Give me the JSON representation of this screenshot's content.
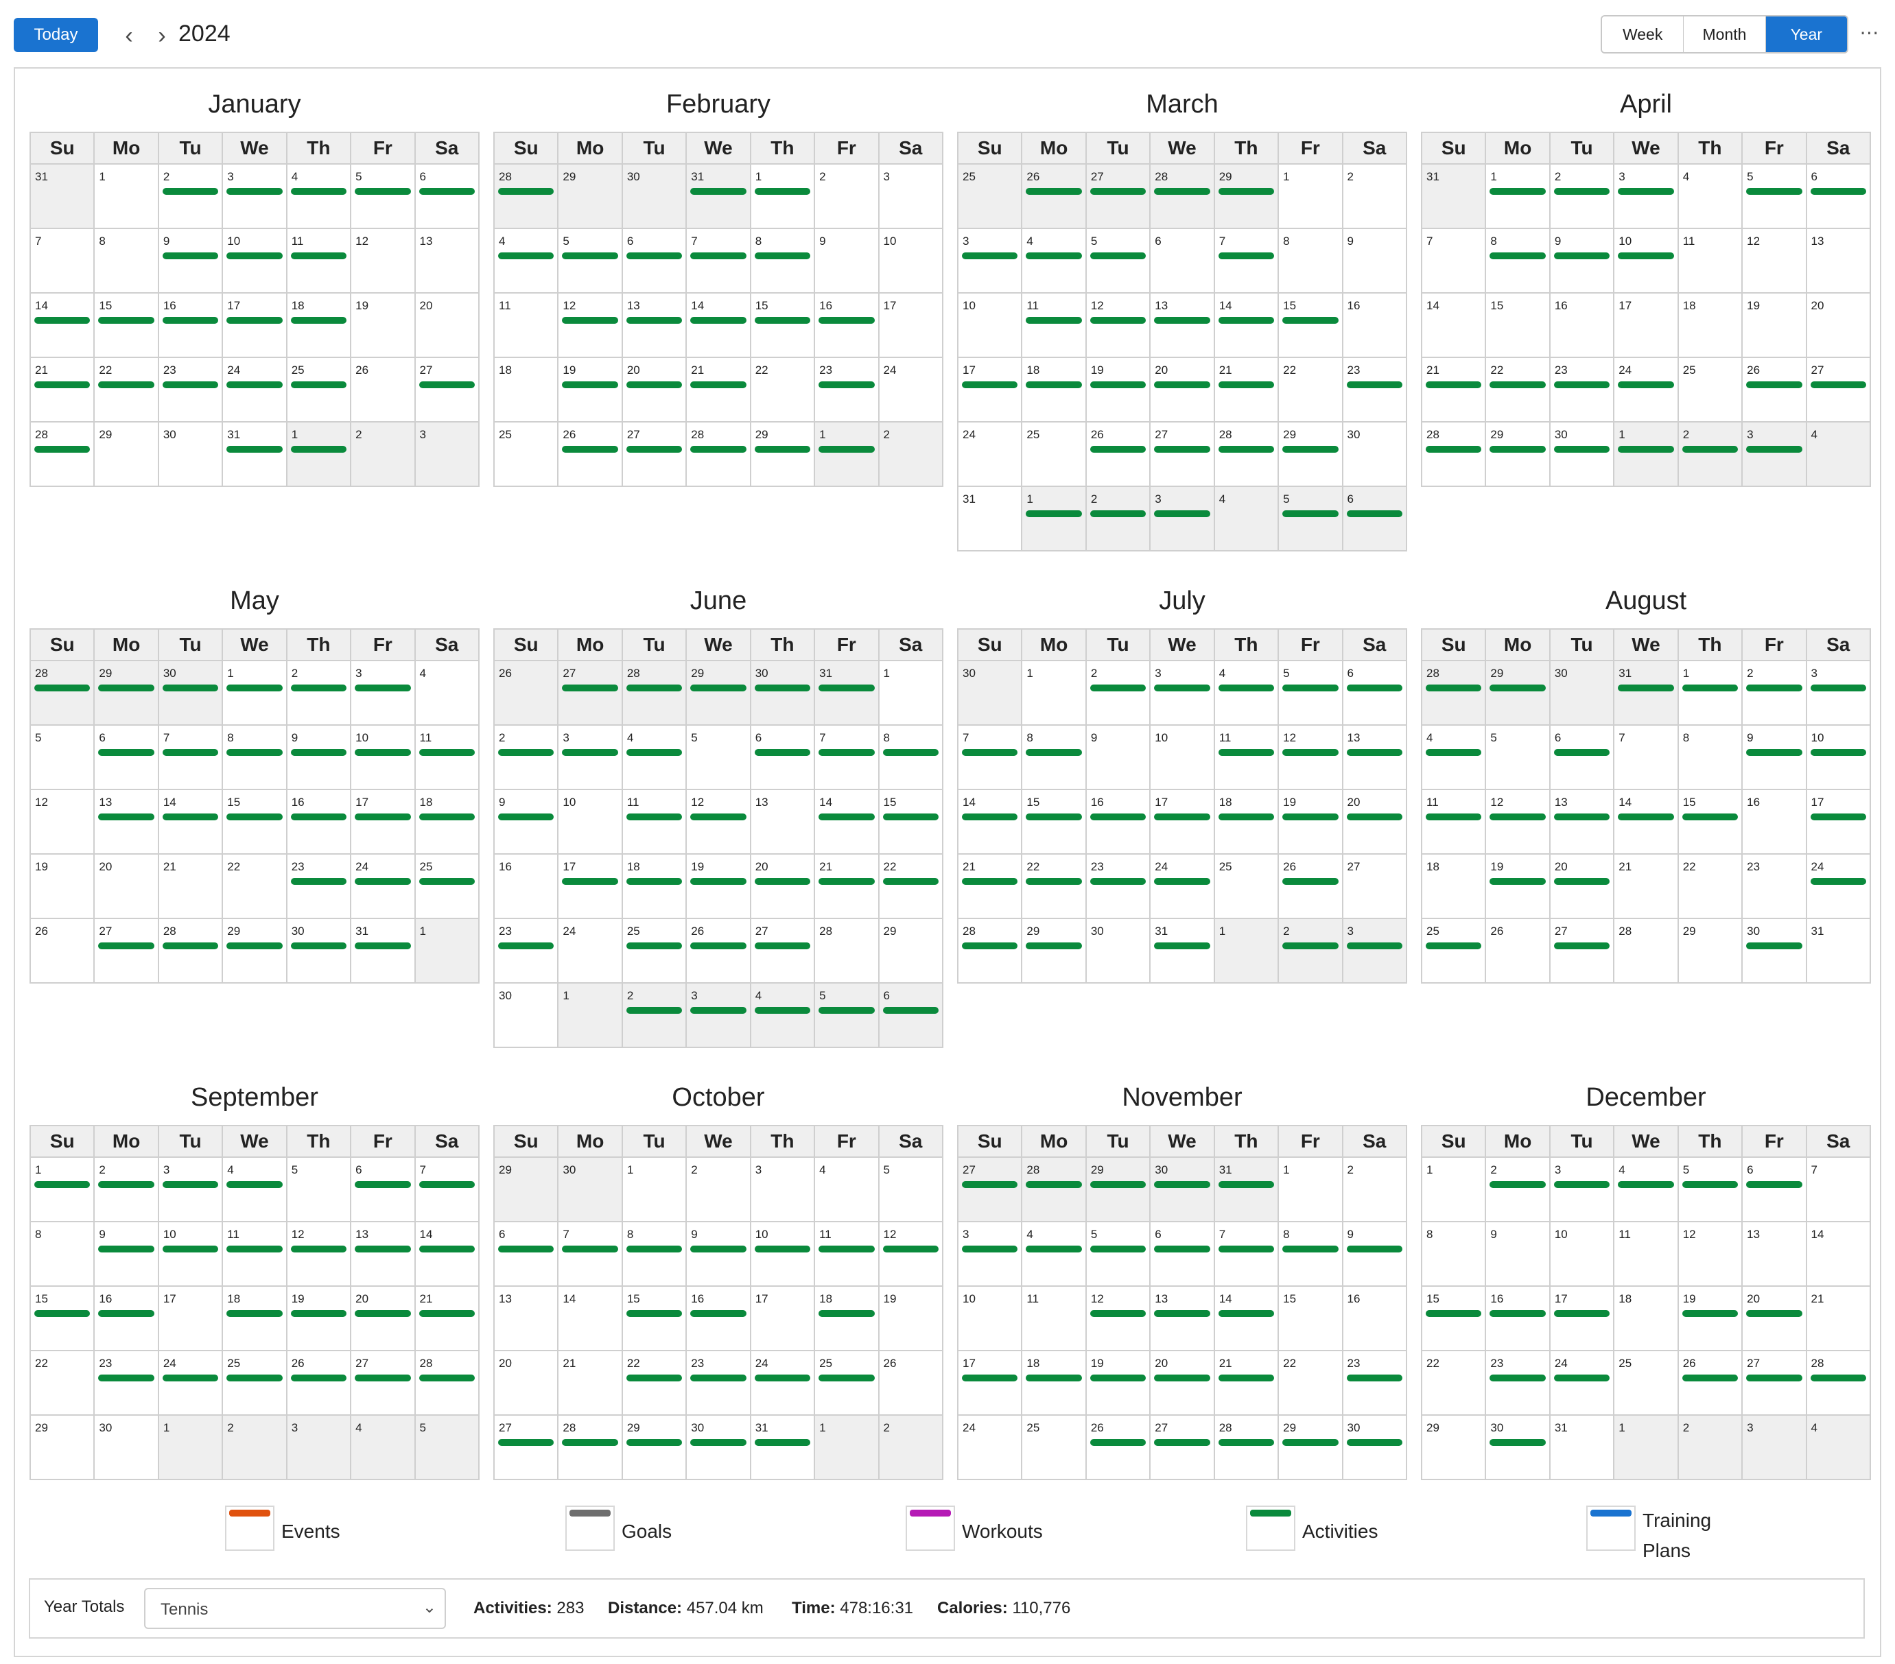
{
  "toolbar": {
    "today_label": "Today",
    "prev_icon": "chevron-left-icon",
    "next_icon": "chevron-right-icon",
    "year": "2024",
    "views": [
      {
        "label": "Week",
        "active": false
      },
      {
        "label": "Month",
        "active": false
      },
      {
        "label": "Year",
        "active": true
      }
    ],
    "more_icon": "more-horizontal-icon"
  },
  "weekday_headers": [
    "Su",
    "Mo",
    "Tu",
    "We",
    "Th",
    "Fr",
    "Sa"
  ],
  "colors": {
    "activity": "#0a8a3c",
    "primary": "#1a73d0",
    "events": "#e0520f",
    "goals": "#6e6e6e",
    "workouts": "#b51ab5",
    "activities": "#0a8a3c",
    "training_plans": "#1a73d0"
  },
  "calendar": {
    "months": [
      {
        "name": "January",
        "first_date": "2023-12-31",
        "weeks": 5,
        "activity_days": [
          "01-02",
          "01-03",
          "01-04",
          "01-05",
          "01-06",
          "01-09",
          "01-10",
          "01-11",
          "01-14",
          "01-15",
          "01-16",
          "01-17",
          "01-18",
          "01-21",
          "01-22",
          "01-23",
          "01-24",
          "01-25",
          "01-27",
          "01-28",
          "01-31",
          "02-01"
        ]
      },
      {
        "name": "February",
        "first_date": "2024-01-28",
        "weeks": 5,
        "activity_days": [
          "01-28",
          "01-31",
          "02-01",
          "02-04",
          "02-05",
          "02-06",
          "02-07",
          "02-08",
          "02-12",
          "02-13",
          "02-14",
          "02-15",
          "02-16",
          "02-19",
          "02-20",
          "02-21",
          "02-23",
          "02-26",
          "02-27",
          "02-28",
          "02-29",
          "03-01"
        ]
      },
      {
        "name": "March",
        "first_date": "2024-02-25",
        "weeks": 6,
        "activity_days": [
          "02-26",
          "02-27",
          "02-28",
          "02-29",
          "03-03",
          "03-04",
          "03-05",
          "03-07",
          "03-11",
          "03-12",
          "03-13",
          "03-14",
          "03-15",
          "03-17",
          "03-18",
          "03-19",
          "03-20",
          "03-21",
          "03-23",
          "03-26",
          "03-27",
          "03-28",
          "03-29",
          "04-01",
          "04-02",
          "04-03",
          "04-05",
          "04-06"
        ]
      },
      {
        "name": "April",
        "first_date": "2024-03-31",
        "weeks": 5,
        "activity_days": [
          "04-01",
          "04-02",
          "04-03",
          "04-05",
          "04-06",
          "04-08",
          "04-09",
          "04-10",
          "04-21",
          "04-22",
          "04-23",
          "04-24",
          "04-26",
          "04-27",
          "04-28",
          "04-29",
          "04-30",
          "05-01",
          "05-02",
          "05-03"
        ]
      },
      {
        "name": "May",
        "first_date": "2024-04-28",
        "weeks": 5,
        "activity_days": [
          "04-28",
          "04-29",
          "04-30",
          "05-01",
          "05-02",
          "05-03",
          "05-06",
          "05-07",
          "05-08",
          "05-09",
          "05-10",
          "05-11",
          "05-13",
          "05-14",
          "05-15",
          "05-16",
          "05-17",
          "05-18",
          "05-23",
          "05-24",
          "05-25",
          "05-27",
          "05-28",
          "05-29",
          "05-30",
          "05-31"
        ]
      },
      {
        "name": "June",
        "first_date": "2024-05-26",
        "weeks": 6,
        "activity_days": [
          "05-27",
          "05-28",
          "05-29",
          "05-30",
          "05-31",
          "06-02",
          "06-03",
          "06-04",
          "06-06",
          "06-07",
          "06-08",
          "06-09",
          "06-11",
          "06-12",
          "06-14",
          "06-15",
          "06-17",
          "06-18",
          "06-19",
          "06-20",
          "06-21",
          "06-22",
          "06-23",
          "06-25",
          "06-26",
          "06-27",
          "07-02",
          "07-03",
          "07-04",
          "07-05",
          "07-06"
        ]
      },
      {
        "name": "July",
        "first_date": "2024-06-30",
        "weeks": 5,
        "activity_days": [
          "07-02",
          "07-03",
          "07-04",
          "07-05",
          "07-06",
          "07-07",
          "07-08",
          "07-11",
          "07-12",
          "07-13",
          "07-14",
          "07-15",
          "07-16",
          "07-17",
          "07-18",
          "07-19",
          "07-20",
          "07-21",
          "07-22",
          "07-23",
          "07-24",
          "07-26",
          "07-28",
          "07-29",
          "07-31",
          "08-02",
          "08-03"
        ]
      },
      {
        "name": "August",
        "first_date": "2024-07-28",
        "weeks": 5,
        "activity_days": [
          "07-28",
          "07-29",
          "07-31",
          "08-01",
          "08-02",
          "08-03",
          "08-04",
          "08-06",
          "08-09",
          "08-10",
          "08-11",
          "08-12",
          "08-13",
          "08-14",
          "08-15",
          "08-17",
          "08-19",
          "08-20",
          "08-24",
          "08-25",
          "08-27",
          "08-30"
        ]
      },
      {
        "name": "September",
        "first_date": "2024-09-01",
        "weeks": 5,
        "activity_days": [
          "09-01",
          "09-02",
          "09-03",
          "09-04",
          "09-06",
          "09-07",
          "09-09",
          "09-10",
          "09-11",
          "09-12",
          "09-13",
          "09-14",
          "09-15",
          "09-16",
          "09-18",
          "09-19",
          "09-20",
          "09-21",
          "09-23",
          "09-24",
          "09-25",
          "09-26",
          "09-27",
          "09-28"
        ]
      },
      {
        "name": "October",
        "first_date": "2024-09-29",
        "weeks": 5,
        "activity_days": [
          "10-06",
          "10-07",
          "10-08",
          "10-09",
          "10-10",
          "10-11",
          "10-12",
          "10-15",
          "10-16",
          "10-18",
          "10-22",
          "10-23",
          "10-24",
          "10-25",
          "10-27",
          "10-28",
          "10-29",
          "10-30",
          "10-31"
        ]
      },
      {
        "name": "November",
        "first_date": "2024-10-27",
        "weeks": 5,
        "activity_days": [
          "10-27",
          "10-28",
          "10-29",
          "10-30",
          "10-31",
          "11-03",
          "11-04",
          "11-05",
          "11-06",
          "11-07",
          "11-08",
          "11-09",
          "11-12",
          "11-13",
          "11-14",
          "11-17",
          "11-18",
          "11-19",
          "11-20",
          "11-21",
          "11-23",
          "11-26",
          "11-27",
          "11-28",
          "11-29",
          "11-30"
        ]
      },
      {
        "name": "December",
        "first_date": "2024-12-01",
        "weeks": 5,
        "activity_days": [
          "12-02",
          "12-03",
          "12-04",
          "12-05",
          "12-06",
          "12-15",
          "12-16",
          "12-17",
          "12-19",
          "12-20",
          "12-23",
          "12-24",
          "12-26",
          "12-27",
          "12-28",
          "12-30"
        ]
      }
    ]
  },
  "legend": [
    {
      "label": "Events",
      "icon": "events-legend-icon",
      "color": "#e0520f"
    },
    {
      "label": "Goals",
      "icon": "goals-legend-icon",
      "color": "#6e6e6e"
    },
    {
      "label": "Workouts",
      "icon": "workouts-legend-icon",
      "color": "#b51ab5"
    },
    {
      "label": "Activities",
      "icon": "activities-legend-icon",
      "color": "#0a8a3c"
    },
    {
      "label": "Training Plans",
      "icon": "training-plans-legend-icon",
      "color": "#1a73d0"
    }
  ],
  "totals": {
    "title": "Year Totals",
    "sport_select": "Tennis",
    "activities_label": "Activities:",
    "activities_value": "283",
    "distance_label": "Distance:",
    "distance_value": "457.04 km",
    "time_label": "Time:",
    "time_value": "478:16:31",
    "calories_label": "Calories:",
    "calories_value": "110,776"
  }
}
